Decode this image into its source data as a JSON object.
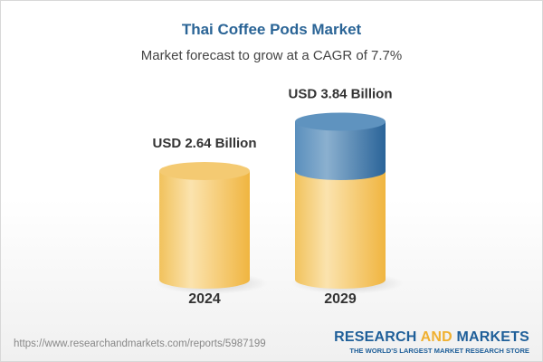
{
  "title": "Thai Coffee Pods Market",
  "subtitle": "Market forecast to grow at a CAGR of 7.7%",
  "chart_data": {
    "type": "bar",
    "style": "3d-cylinder",
    "categories": [
      "2024",
      "2029"
    ],
    "values": [
      2.64,
      3.84
    ],
    "data_labels": [
      "USD 2.64 Billion",
      "USD 3.84 Billion"
    ],
    "unit": "USD Billion",
    "colors": {
      "base": "#f2c35a",
      "growth": "#3f7fb0"
    }
  },
  "footer": {
    "url": "https://www.researchandmarkets.com/reports/5987199",
    "logo": {
      "word1": "RESEARCH ",
      "word2": "AND",
      "word3": " MARKETS",
      "tagline": "THE WORLD'S LARGEST MARKET RESEARCH STORE"
    }
  }
}
